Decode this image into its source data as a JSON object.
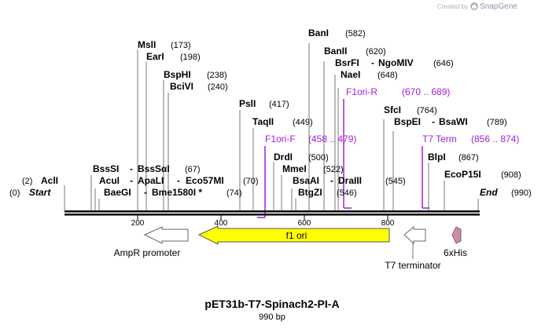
{
  "watermark": {
    "text": "Created by",
    "brand": "SnapGene"
  },
  "title": "pET31b-T7-Spinach2-PI-A",
  "subtitle": "990 bp",
  "ticks": [
    "200",
    "400",
    "600",
    "800"
  ],
  "colors": {
    "primer": "#a020d8",
    "f1ori": "#ffff00",
    "promoter": "#ffffff",
    "tag": "#c98fa7",
    "line": "#000000"
  },
  "labels": {
    "mslI": {
      "name": "MslI",
      "pos": "(173)"
    },
    "earI": {
      "name": "EarI",
      "pos": "(198)"
    },
    "bspHI": {
      "name": "BspHI",
      "pos": "(238)"
    },
    "bciVI": {
      "name": "BciVI",
      "pos": "(240)"
    },
    "pslI": {
      "name": "PslI",
      "pos": "(417)"
    },
    "taqII": {
      "name": "TaqII",
      "pos": "(449)"
    },
    "f1oriF": {
      "name": "F1ori-F",
      "pos": "(458 .. 479)"
    },
    "banI": {
      "name": "BanI",
      "pos": "(582)"
    },
    "banII": {
      "name": "BanII",
      "pos": "(620)"
    },
    "bsrFI": {
      "name": "BsrFI",
      "sep": "-",
      "name2": "NgoMIV",
      "pos": "(646)"
    },
    "naeI": {
      "name": "NaeI",
      "pos": "(648)"
    },
    "f1oriR": {
      "name": "F1ori-R",
      "pos": "(670 .. 689)"
    },
    "sfcI": {
      "name": "SfcI",
      "pos": "(764)"
    },
    "bspEI": {
      "name": "BspEI",
      "sep": "-",
      "name2": "BsaWI",
      "pos": "(789)"
    },
    "t7term": {
      "name": "T7 Term",
      "pos": "(856 .. 874)"
    },
    "blpI": {
      "name": "BlpI",
      "pos": "(867)"
    },
    "drdI": {
      "name": "DrdI",
      "pos": "(500)"
    },
    "mmeI": {
      "name": "MmeI",
      "pos": "(522)"
    },
    "bsaAI": {
      "name": "BsaAI",
      "sep": "-",
      "name2": "DraIII",
      "pos": "(545)"
    },
    "btgZI": {
      "name": "BtgZI",
      "pos": "(546)"
    },
    "ecoP15I": {
      "name": "EcoP15I",
      "pos": "(908)"
    },
    "aclI": {
      "pos": "(2)",
      "name": "AclI"
    },
    "start": {
      "pos": "(0)",
      "name": "Start"
    },
    "end": {
      "name": "End",
      "pos": "(990)"
    },
    "bssSI": {
      "name": "BssSI",
      "sep": "-",
      "name2": "BssSαI",
      "pos": "(67)"
    },
    "acuI": {
      "name": "AcuI",
      "sep": "-",
      "name2": "ApaLI",
      "sep2": "-",
      "name3": "Eco57MI",
      "pos": "(70)"
    },
    "baeGI": {
      "name": "BaeGI",
      "sep": "-",
      "name2": "Bme1580I *",
      "pos": "(74)"
    }
  },
  "features": {
    "ampR": "AmpR promoter",
    "f1ori": "f1 ori",
    "t7terminator": "T7 terminator",
    "his": "6xHis"
  }
}
